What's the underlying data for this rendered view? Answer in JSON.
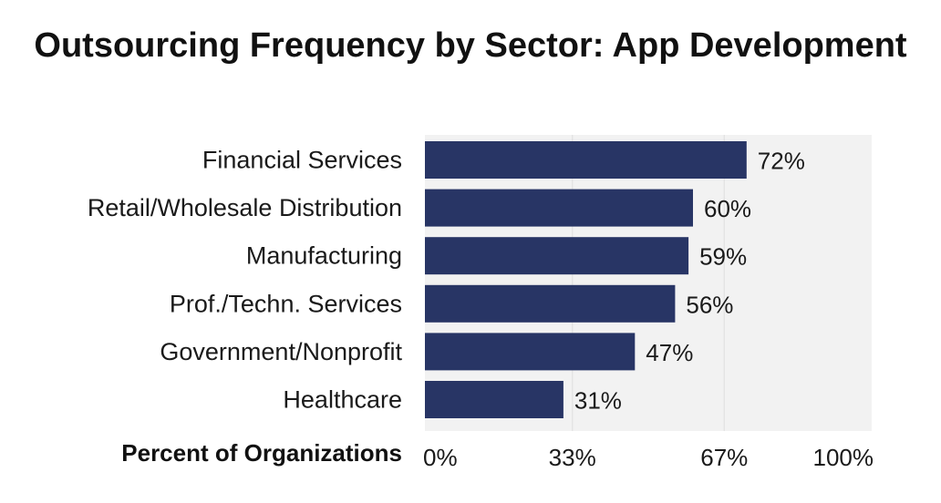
{
  "chart_data": {
    "type": "bar",
    "orientation": "horizontal",
    "title": "Outsourcing Frequency by Sector: App Development",
    "xlabel": "Percent of Organizations",
    "ylabel": "",
    "categories": [
      "Financial Services",
      "Retail/Wholesale Distribution",
      "Manufacturing",
      "Prof./Techn. Services",
      "Government/Nonprofit",
      "Healthcare"
    ],
    "values": [
      72,
      60,
      59,
      56,
      47,
      31
    ],
    "value_labels": [
      "72%",
      "60%",
      "59%",
      "56%",
      "47%",
      "31%"
    ],
    "xlim": [
      0,
      100
    ],
    "x_ticks": [
      0,
      33,
      67,
      100
    ],
    "x_tick_labels": [
      "0%",
      "33%",
      "67%",
      "100%"
    ],
    "grid": true,
    "legend": "none",
    "colors": {
      "bar": "#283565",
      "plot_background": "#f2f2f2",
      "gridline": "#e4e4e4",
      "text": "#111111"
    }
  }
}
